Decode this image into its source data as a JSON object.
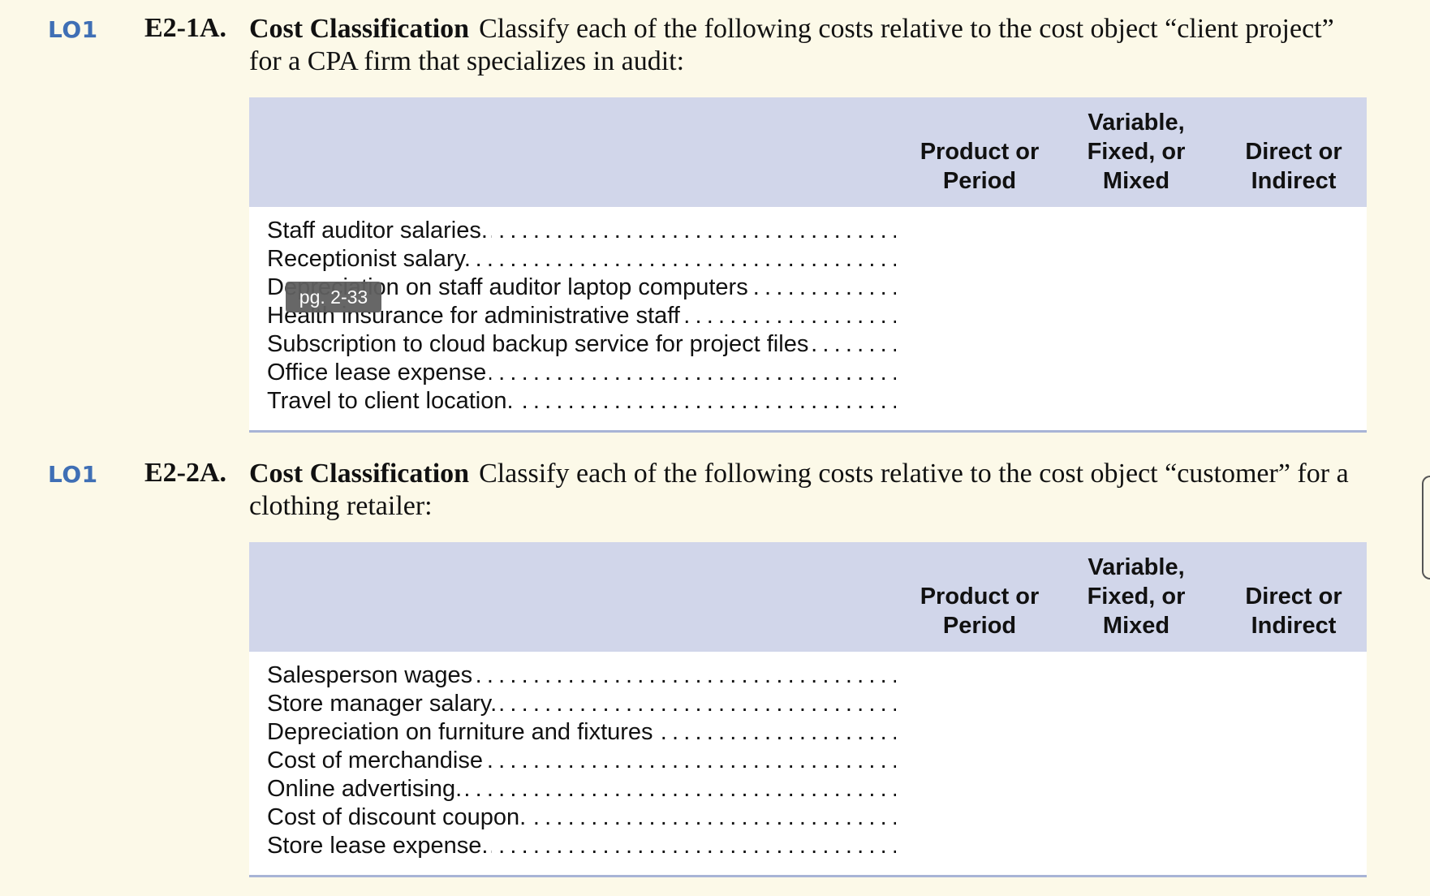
{
  "exercises": [
    {
      "lo": "LO1",
      "number": "E2-1A.",
      "title": "Cost Classification",
      "prompt": "Classify each of the following costs relative to the cost object “client project” for a CPA firm that specializes in audit:",
      "columns": [
        "Product or\nPeriod",
        "Variable,\nFixed, or\nMixed",
        "Direct or\nIndirect"
      ],
      "items": [
        "Staff auditor salaries.",
        "Receptionist salary.",
        "Depreciation on staff auditor laptop computers",
        "Health insurance for administrative staff",
        "Subscription to cloud backup service for project files",
        "Office lease expense",
        "Travel to client location."
      ]
    },
    {
      "lo": "LO1",
      "number": "E2-2A.",
      "title": "Cost Classification",
      "prompt": "Classify each of the following costs relative to the cost object “customer” for a clothing retailer:",
      "columns": [
        "Product or\nPeriod",
        "Variable,\nFixed, or\nMixed",
        "Direct or\nIndirect"
      ],
      "items": [
        "Salesperson wages",
        "Store manager salary.",
        "Depreciation on furniture and fixtures",
        "Cost of merchandise",
        "Online advertising.",
        "Cost of discount coupon.",
        "Store lease expense."
      ]
    }
  ],
  "tooltip": {
    "text": "pg. 2-33"
  },
  "colors": {
    "page_background": "#fcf9e8",
    "table_header": "#d1d6ea",
    "lo_label": "#3f6fb5",
    "tooltip_background": "#5f5f5f"
  }
}
